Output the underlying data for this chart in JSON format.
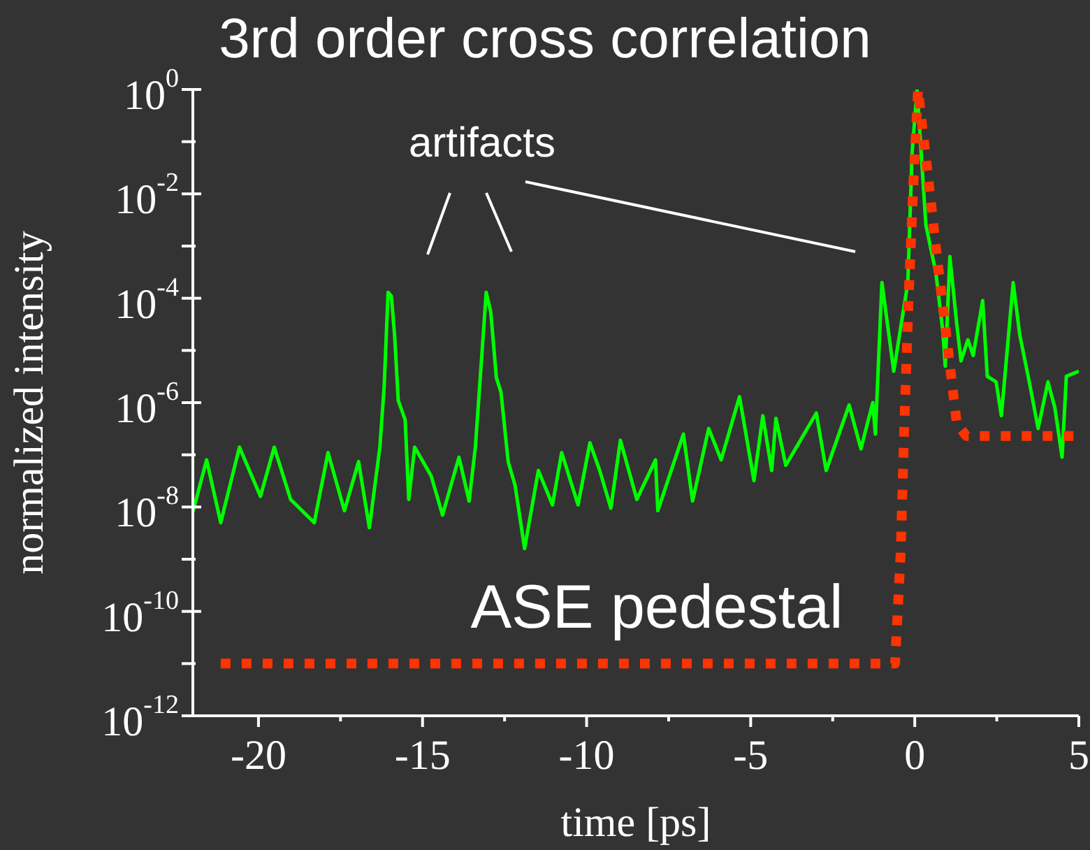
{
  "chart_data": {
    "type": "line",
    "title": "3rd order cross correlation",
    "xlabel": "time [ps]",
    "ylabel": "normalized intensity",
    "log": "y",
    "xlim": [
      -22,
      5
    ],
    "xticks": [
      -20,
      {
        "value": -17.5,
        "label": null
      },
      -15,
      {
        "value": -12.5,
        "label": null
      },
      -10,
      {
        "value": -7.5,
        "label": null
      },
      -5,
      {
        "value": -2.5,
        "label": null
      },
      0,
      {
        "value": 2.5,
        "label": null
      },
      5
    ],
    "ylim": [
      1e-12,
      1
    ],
    "yticks": [
      {
        "value": 1e-12,
        "label": "10$^{-12}$"
      },
      {
        "value": 1e-11,
        "label": null
      },
      {
        "value": 1e-10,
        "label": "10$^{-10}$"
      },
      {
        "value": 1e-09,
        "label": null
      },
      {
        "value": 1e-08,
        "label": "10$^{-8}$"
      },
      {
        "value": 1e-07,
        "label": null
      },
      {
        "value": 1e-06,
        "label": "10$^{-6}$"
      },
      {
        "value": 1e-05,
        "label": null
      },
      {
        "value": 0.0001,
        "label": "10$^{-4}$"
      },
      {
        "value": 0.001,
        "label": null
      },
      {
        "value": 0.01,
        "label": "10$^{-2}$"
      },
      {
        "value": 0.1,
        "label": null
      },
      {
        "value": 1,
        "label": "10$^{0}$"
      }
    ],
    "annotations": [
      "artifacts",
      "ASE pedestal"
    ],
    "series": [
      {
        "color": "#00ff00",
        "line_style": "solid",
        "x": [
          -22,
          -21.58,
          -21.15,
          -20.58,
          -19.94,
          -19.52,
          -19.02,
          -18.3,
          -17.88,
          -17.38,
          -16.95,
          -16.62,
          -16.3,
          -16.17,
          -16.05,
          -15.95,
          -15.85,
          -15.74,
          -15.53,
          -15.42,
          -15.24,
          -14.74,
          -14.39,
          -13.89,
          -13.58,
          -13.39,
          -13.25,
          -13.06,
          -12.92,
          -12.75,
          -12.61,
          -12.39,
          -12.18,
          -11.89,
          -11.47,
          -11.04,
          -10.76,
          -10.26,
          -9.9,
          -9.6,
          -9.26,
          -8.97,
          -8.47,
          -7.9,
          -7.83,
          -7.05,
          -6.77,
          -6.28,
          -5.9,
          -5.34,
          -4.9,
          -4.63,
          -4.36,
          -4.23,
          -3.93,
          -3,
          -2.7,
          -2,
          -1.64,
          -1.28,
          -1.2,
          -1,
          -0.64,
          -0.21,
          -0.08,
          0.07,
          0.34,
          0.64,
          0.85,
          0.93,
          1.07,
          1.28,
          1.41,
          1.62,
          1.78,
          2.07,
          2.21,
          2.48,
          2.64,
          3,
          3.2,
          3.49,
          3.76,
          4.06,
          4.27,
          4.49,
          4.62,
          5
        ],
        "values": [
          8e-09,
          8e-08,
          5e-09,
          1.4e-07,
          1.6e-08,
          1.4e-07,
          1.4e-08,
          5e-09,
          1.1e-07,
          8.5e-09,
          7.4e-08,
          4e-09,
          1.4e-07,
          2e-06,
          0.00013,
          0.00011,
          1.9e-05,
          1.1e-06,
          4.7e-07,
          1.4e-08,
          1.4e-07,
          4e-08,
          7e-09,
          9e-08,
          1.3e-08,
          1.4e-07,
          2.5e-06,
          0.00013,
          5.4e-05,
          3e-06,
          1.6e-06,
          7.4e-08,
          2.6e-08,
          1.6e-09,
          5e-08,
          1.1e-08,
          1.1e-07,
          1.1e-08,
          1.7e-07,
          5e-08,
          9.5e-09,
          1.9e-07,
          1.4e-08,
          8e-08,
          8.5e-09,
          2.5e-07,
          1.3e-08,
          3.2e-07,
          8e-08,
          1.3e-06,
          3.2e-08,
          5.6e-07,
          5e-08,
          5e-07,
          6.3e-08,
          6.3e-07,
          5e-08,
          9e-07,
          1.3e-07,
          1e-06,
          2.5e-07,
          0.0002,
          4e-06,
          0.0002,
          0.063,
          1,
          0.0025,
          0.00032,
          2.5e-05,
          5e-06,
          0.00063,
          3.2e-05,
          6.3e-06,
          1.6e-05,
          8e-06,
          9e-05,
          3.2e-06,
          2.5e-06,
          5.6e-07,
          0.0002,
          2e-05,
          2.5e-06,
          3.2e-07,
          2.5e-06,
          8e-07,
          9e-08,
          3.2e-06,
          4e-06
        ]
      },
      {
        "color": "#ff3300",
        "line_style": "dotted",
        "x": [
          -21.15,
          -0.6,
          -0.43,
          -0.3,
          -0.18,
          -0.04,
          0.1,
          0.34,
          0.64,
          0.98,
          1.28,
          1.57,
          5
        ],
        "values": [
          1e-11,
          1e-11,
          1.3e-09,
          8.7e-07,
          0.00013,
          0.017,
          1,
          0.05,
          0.001,
          1.6e-05,
          4e-07,
          2.3e-07,
          2.3e-07
        ]
      }
    ]
  }
}
